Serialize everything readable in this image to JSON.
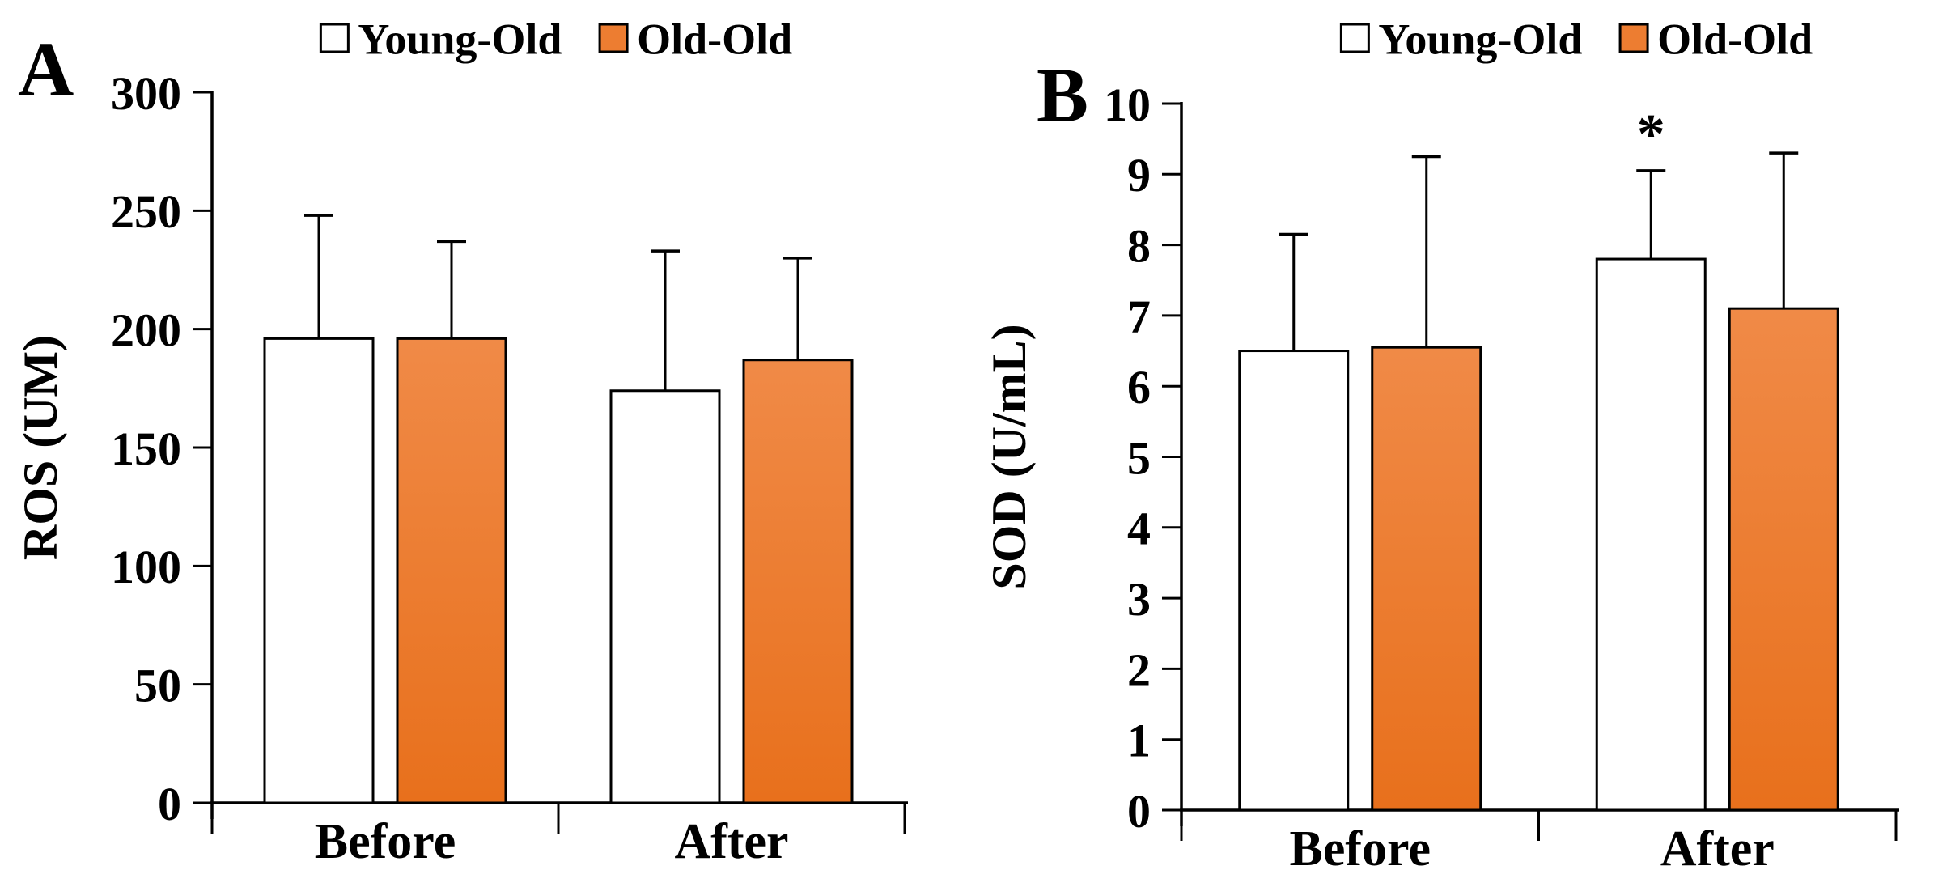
{
  "figure": {
    "background": "#FFFFFF",
    "panel_letters": [
      "A",
      "B"
    ]
  },
  "colors": {
    "young_old_fill": "#FFFFFF",
    "old_old_legend_fill": "#ED7D31",
    "old_old_bar_gradient_top": "#F08A47",
    "old_old_bar_gradient_bottom": "#E8701C",
    "bar_outline": "#000000",
    "axis": "#000000"
  },
  "chart_data": [
    {
      "type": "bar",
      "panel_letter": "A",
      "title": "",
      "xlabel": "",
      "ylabel": "ROS (UM)",
      "categories": [
        "Before",
        "After"
      ],
      "series": [
        {
          "name": "Young-Old",
          "fill": "#FFFFFF",
          "values": [
            196,
            174
          ],
          "sd": [
            52,
            59
          ]
        },
        {
          "name": "Old-Old",
          "fill": "#ED7D31",
          "values": [
            196,
            187
          ],
          "sd": [
            41,
            43
          ]
        }
      ],
      "ylim": [
        0,
        300
      ],
      "ytick_step": 50,
      "ytick_labels": [
        "0",
        "50",
        "100",
        "150",
        "200",
        "250",
        "300"
      ],
      "grid": false,
      "legend_position": "top-center",
      "legend_items": [
        "Young-Old",
        "Old-Old"
      ],
      "error_bars": "upper-only",
      "annotations": []
    },
    {
      "type": "bar",
      "panel_letter": "B",
      "title": "",
      "xlabel": "",
      "ylabel": "SOD (U/mL)",
      "categories": [
        "Before",
        "After"
      ],
      "series": [
        {
          "name": "Young-Old",
          "fill": "#FFFFFF",
          "values": [
            6.5,
            7.8
          ],
          "sd": [
            1.65,
            1.25
          ]
        },
        {
          "name": "Old-Old",
          "fill": "#ED7D31",
          "values": [
            6.55,
            7.1
          ],
          "sd": [
            2.7,
            2.2
          ]
        }
      ],
      "ylim": [
        0,
        10
      ],
      "ytick_step": 1,
      "ytick_labels": [
        "0",
        "1",
        "2",
        "3",
        "4",
        "5",
        "6",
        "7",
        "8",
        "9",
        "10"
      ],
      "grid": false,
      "legend_position": "top-center",
      "legend_items": [
        "Young-Old",
        "Old-Old"
      ],
      "error_bars": "upper-only",
      "annotations": [
        {
          "text": "*",
          "category": "After",
          "series": "Young-Old",
          "placement": "above-error-bar"
        }
      ]
    }
  ]
}
